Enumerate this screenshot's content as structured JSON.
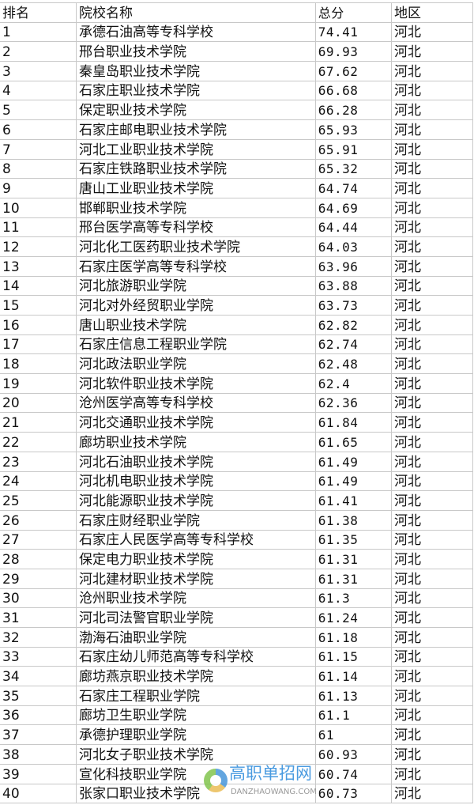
{
  "headers": [
    "排名",
    "院校名称",
    "总分",
    "地区"
  ],
  "rows": [
    [
      "1",
      "承德石油高等专科学校",
      "74.41",
      "河北"
    ],
    [
      "2",
      "邢台职业技术学院",
      "69.93",
      "河北"
    ],
    [
      "3",
      "秦皇岛职业技术学院",
      "67.62",
      "河北"
    ],
    [
      "4",
      "石家庄职业技术学院",
      "66.68",
      "河北"
    ],
    [
      "5",
      "保定职业技术学院",
      "66.28",
      "河北"
    ],
    [
      "6",
      "石家庄邮电职业技术学院",
      "65.93",
      "河北"
    ],
    [
      "7",
      "河北工业职业技术学院",
      "65.91",
      "河北"
    ],
    [
      "8",
      "石家庄铁路职业技术学院",
      "65.32",
      "河北"
    ],
    [
      "9",
      "唐山工业职业技术学院",
      "64.74",
      "河北"
    ],
    [
      "10",
      "邯郸职业技术学院",
      "64.69",
      "河北"
    ],
    [
      "11",
      "邢台医学高等专科学校",
      "64.44",
      "河北"
    ],
    [
      "12",
      "河北化工医药职业技术学院",
      "64.03",
      "河北"
    ],
    [
      "13",
      "石家庄医学高等专科学校",
      "63.96",
      "河北"
    ],
    [
      "14",
      "河北旅游职业学院",
      "63.88",
      "河北"
    ],
    [
      "15",
      "河北对外经贸职业学院",
      "63.73",
      "河北"
    ],
    [
      "16",
      "唐山职业技术学院",
      "62.82",
      "河北"
    ],
    [
      "17",
      "石家庄信息工程职业学院",
      "62.74",
      "河北"
    ],
    [
      "18",
      "河北政法职业学院",
      "62.48",
      "河北"
    ],
    [
      "19",
      "河北软件职业技术学院",
      "62.4",
      "河北"
    ],
    [
      "20",
      "沧州医学高等专科学校",
      "62.36",
      "河北"
    ],
    [
      "21",
      "河北交通职业技术学院",
      "61.84",
      "河北"
    ],
    [
      "22",
      "廊坊职业技术学院",
      "61.65",
      "河北"
    ],
    [
      "23",
      "河北石油职业技术学院",
      "61.49",
      "河北"
    ],
    [
      "24",
      "河北机电职业技术学院",
      "61.49",
      "河北"
    ],
    [
      "25",
      "河北能源职业技术学院",
      "61.41",
      "河北"
    ],
    [
      "26",
      "石家庄财经职业学院",
      "61.38",
      "河北"
    ],
    [
      "27",
      "石家庄人民医学高等专科学校",
      "61.35",
      "河北"
    ],
    [
      "28",
      "保定电力职业技术学院",
      "61.31",
      "河北"
    ],
    [
      "29",
      "河北建材职业技术学院",
      "61.31",
      "河北"
    ],
    [
      "30",
      "沧州职业技术学院",
      "61.3",
      "河北"
    ],
    [
      "31",
      "河北司法警官职业学院",
      "61.24",
      "河北"
    ],
    [
      "32",
      "渤海石油职业学院",
      "61.18",
      "河北"
    ],
    [
      "33",
      "石家庄幼儿师范高等专科学校",
      "61.15",
      "河北"
    ],
    [
      "34",
      "廊坊燕京职业技术学院",
      "61.14",
      "河北"
    ],
    [
      "35",
      "石家庄工程职业学院",
      "61.13",
      "河北"
    ],
    [
      "36",
      "廊坊卫生职业学院",
      "61.1",
      "河北"
    ],
    [
      "37",
      "承德护理职业学院",
      "61",
      "河北"
    ],
    [
      "38",
      "河北女子职业技术学院",
      "60.93",
      "河北"
    ],
    [
      "39",
      "宣化科技职业学院",
      "60.74",
      "河北"
    ],
    [
      "40",
      "张家口职业技术学院",
      "60.73",
      "河北"
    ]
  ],
  "watermark": {
    "title": "高职单招网",
    "subtitle": "DANZHAOWANG.COM"
  }
}
